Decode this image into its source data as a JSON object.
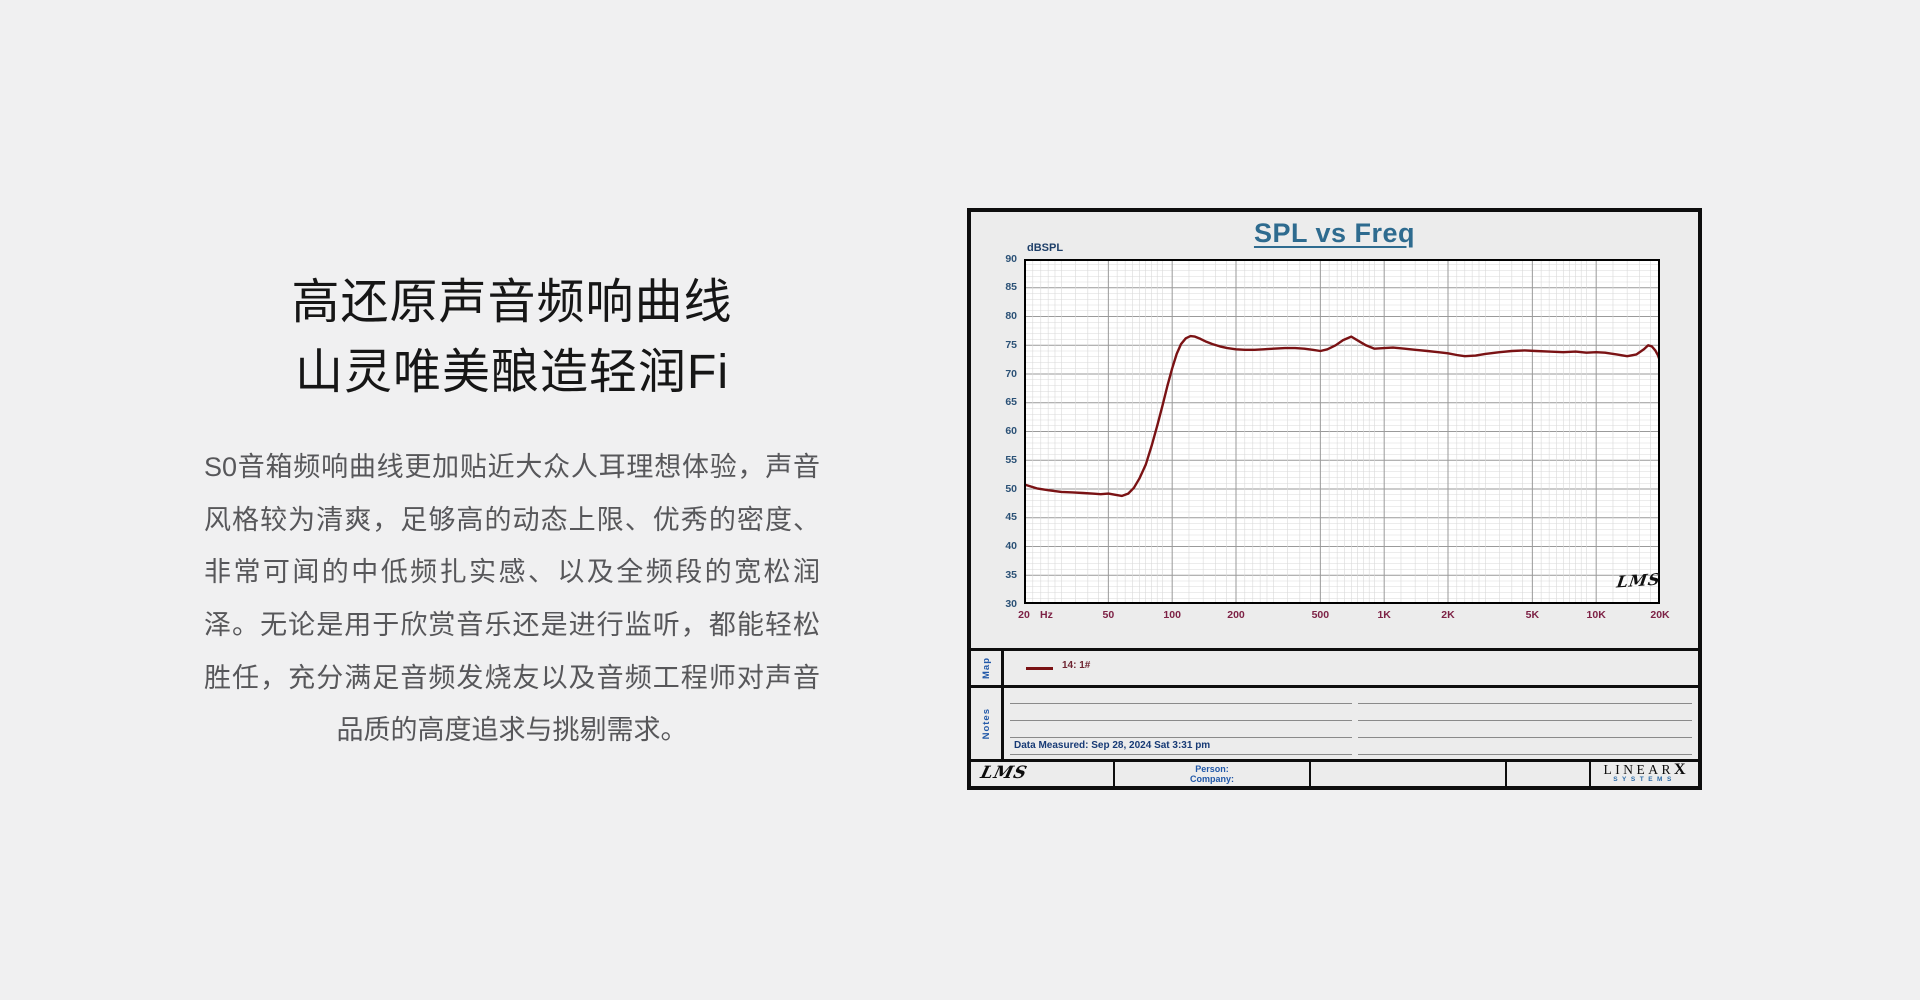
{
  "intro": {
    "heading_line1": "高还原声音频响曲线",
    "heading_line2": "山灵唯美酿造轻润Fi",
    "body": "S0音箱频响曲线更加贴近大众人耳理想体验，声音风格较为清爽，足够高的动态上限、优秀的密度、非常可闻的中低频扎实感、以及全频段的宽松润泽。无论是用于欣赏音乐还是进行监听，都能轻松胜任，充分满足音频发烧友以及音频工程师对声音品质的高度追求与挑剔需求。"
  },
  "panel": {
    "title": "SPL vs Freq",
    "y_axis_unit": "dBSPL",
    "x_axis_unit": "Hz",
    "plot_logo": "LMS",
    "map_label": "Map",
    "notes_label": "Notes",
    "legend_label": "14: 1#",
    "data_measured": "Data Measured: Sep 28, 2024  Sat  3:31 pm",
    "footer": {
      "lms_logo": "LMS",
      "person_label": "Person:",
      "company_label": "Company:",
      "brand_top": "LINEAR",
      "brand_x": "X",
      "brand_bottom": "SYSTEMS"
    },
    "colors": {
      "title": "#2e6b8f",
      "curve": "#7a1214",
      "x_labels": "#7d2145",
      "y_labels": "#2b5176",
      "blue_labels": "#2158a8",
      "grid_major": "#9a9a9a",
      "grid_minor": "#d9d9d9"
    }
  },
  "chart_data": {
    "type": "line",
    "title": "SPL vs Freq",
    "ylabel": "dBSPL",
    "xlabel": "Hz",
    "x_scale": "log",
    "x_range": [
      20,
      20000
    ],
    "ylim": [
      30,
      90
    ],
    "grid": "on",
    "legend_position": "map-strip-below",
    "y_ticks": [
      90,
      85,
      80,
      75,
      70,
      65,
      60,
      55,
      50,
      45,
      40,
      35,
      30
    ],
    "x_ticks": [
      {
        "label": "20",
        "f": 20
      },
      {
        "label": "50",
        "f": 50
      },
      {
        "label": "100",
        "f": 100
      },
      {
        "label": "200",
        "f": 200
      },
      {
        "label": "500",
        "f": 500
      },
      {
        "label": "1K",
        "f": 1000
      },
      {
        "label": "2K",
        "f": 2000
      },
      {
        "label": "5K",
        "f": 5000
      },
      {
        "label": "10K",
        "f": 10000
      },
      {
        "label": "20K",
        "f": 20000
      }
    ],
    "major_x_gridlines": [
      20,
      50,
      100,
      200,
      500,
      1000,
      2000,
      5000,
      10000,
      20000
    ],
    "series": [
      {
        "name": "14: 1#",
        "color": "#7a1214",
        "points": [
          [
            20,
            50.8
          ],
          [
            23,
            50.1
          ],
          [
            26,
            49.8
          ],
          [
            30,
            49.5
          ],
          [
            34,
            49.4
          ],
          [
            38,
            49.3
          ],
          [
            42,
            49.2
          ],
          [
            46,
            49.1
          ],
          [
            50,
            49.2
          ],
          [
            54,
            49.0
          ],
          [
            58,
            48.8
          ],
          [
            62,
            49.2
          ],
          [
            66,
            50.2
          ],
          [
            70,
            51.8
          ],
          [
            75,
            54.2
          ],
          [
            80,
            57.5
          ],
          [
            85,
            61.0
          ],
          [
            90,
            64.5
          ],
          [
            95,
            68.0
          ],
          [
            100,
            71.0
          ],
          [
            105,
            73.5
          ],
          [
            110,
            75.2
          ],
          [
            116,
            76.2
          ],
          [
            122,
            76.6
          ],
          [
            128,
            76.5
          ],
          [
            136,
            76.1
          ],
          [
            145,
            75.6
          ],
          [
            155,
            75.2
          ],
          [
            168,
            74.8
          ],
          [
            182,
            74.5
          ],
          [
            200,
            74.3
          ],
          [
            220,
            74.2
          ],
          [
            245,
            74.2
          ],
          [
            270,
            74.3
          ],
          [
            300,
            74.4
          ],
          [
            340,
            74.5
          ],
          [
            380,
            74.5
          ],
          [
            420,
            74.4
          ],
          [
            460,
            74.2
          ],
          [
            500,
            74.0
          ],
          [
            540,
            74.3
          ],
          [
            590,
            75.0
          ],
          [
            640,
            75.9
          ],
          [
            700,
            76.5
          ],
          [
            760,
            75.7
          ],
          [
            820,
            75.0
          ],
          [
            900,
            74.4
          ],
          [
            1000,
            74.5
          ],
          [
            1100,
            74.6
          ],
          [
            1250,
            74.4
          ],
          [
            1400,
            74.2
          ],
          [
            1600,
            74.0
          ],
          [
            1800,
            73.8
          ],
          [
            2000,
            73.6
          ],
          [
            2200,
            73.3
          ],
          [
            2400,
            73.1
          ],
          [
            2700,
            73.2
          ],
          [
            3000,
            73.5
          ],
          [
            3500,
            73.8
          ],
          [
            4000,
            74.0
          ],
          [
            4600,
            74.1
          ],
          [
            5200,
            74.0
          ],
          [
            6000,
            73.9
          ],
          [
            7000,
            73.8
          ],
          [
            8000,
            73.9
          ],
          [
            9000,
            73.7
          ],
          [
            10000,
            73.8
          ],
          [
            11000,
            73.7
          ],
          [
            12500,
            73.4
          ],
          [
            14000,
            73.1
          ],
          [
            15500,
            73.4
          ],
          [
            16800,
            74.3
          ],
          [
            17600,
            75.0
          ],
          [
            18300,
            74.8
          ],
          [
            19000,
            74.1
          ],
          [
            19600,
            73.2
          ],
          [
            20000,
            72.2
          ]
        ]
      }
    ]
  }
}
